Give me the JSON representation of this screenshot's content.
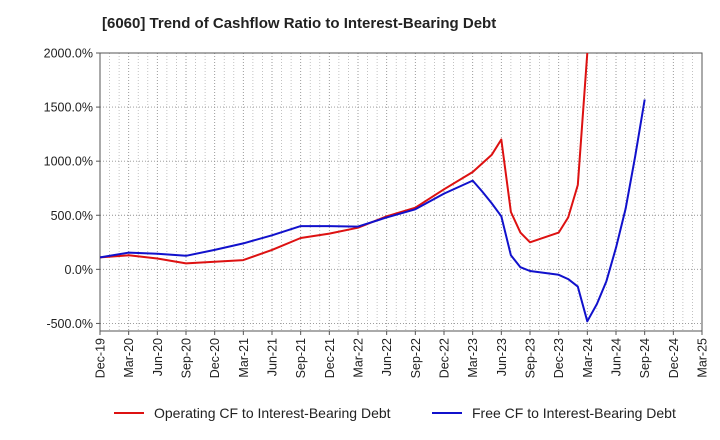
{
  "title": "[6060]  Trend of Cashflow Ratio to Interest-Bearing Debt",
  "chart_data": {
    "type": "line",
    "title": "[6060]  Trend of Cashflow Ratio to Interest-Bearing Debt",
    "xlabel": "",
    "ylabel": "",
    "x_tick_labels": [
      "Dec-19",
      "Mar-20",
      "Jun-20",
      "Sep-20",
      "Dec-20",
      "Mar-21",
      "Jun-21",
      "Sep-21",
      "Dec-21",
      "Mar-22",
      "Jun-22",
      "Sep-22",
      "Dec-22",
      "Mar-23",
      "Jun-23",
      "Sep-23",
      "Dec-23",
      "Mar-24",
      "Jun-24",
      "Sep-24",
      "Dec-24",
      "Mar-25"
    ],
    "y_tick_labels": [
      "2000.0%",
      "1500.0%",
      "1000.0%",
      "500.0%",
      "0.0%",
      "-500.0%"
    ],
    "y_tick_values": [
      2000,
      1500,
      1000,
      500,
      0,
      -500
    ],
    "ylim": [
      -570,
      2000
    ],
    "xlim": [
      0,
      21
    ],
    "grid": true,
    "legend_position": "bottom",
    "series": [
      {
        "name": "Operating CF to Interest-Bearing Debt",
        "color": "#dd1111",
        "points": [
          [
            "Dec-19",
            110
          ],
          [
            "Mar-20",
            130
          ],
          [
            "Jun-20",
            100
          ],
          [
            "Sep-20",
            55
          ],
          [
            "Dec-20",
            70
          ],
          [
            "Mar-21",
            85
          ],
          [
            "Jun-21",
            180
          ],
          [
            "Sep-21",
            290
          ],
          [
            "Dec-21",
            330
          ],
          [
            "Mar-22",
            385
          ],
          [
            "Jun-22",
            490
          ],
          [
            "Sep-22",
            570
          ],
          [
            "Dec-22",
            740
          ],
          [
            "Mar-23",
            900
          ],
          [
            "May-23",
            1060
          ],
          [
            "Jun-23",
            1200
          ],
          [
            "Jul-23",
            530
          ],
          [
            "Aug-23",
            340
          ],
          [
            "Sep-23",
            250
          ],
          [
            "Dec-23",
            340
          ],
          [
            "Jan-24",
            480
          ],
          [
            "Feb-24",
            780
          ],
          [
            "Mar-24",
            2000
          ]
        ]
      },
      {
        "name": "Free CF to Interest-Bearing Debt",
        "color": "#1111cc",
        "points": [
          [
            "Dec-19",
            110
          ],
          [
            "Mar-20",
            155
          ],
          [
            "Jun-20",
            145
          ],
          [
            "Sep-20",
            125
          ],
          [
            "Dec-20",
            180
          ],
          [
            "Mar-21",
            240
          ],
          [
            "Jun-21",
            315
          ],
          [
            "Sep-21",
            400
          ],
          [
            "Dec-21",
            400
          ],
          [
            "Mar-22",
            395
          ],
          [
            "Jun-22",
            480
          ],
          [
            "Sep-22",
            555
          ],
          [
            "Dec-22",
            700
          ],
          [
            "Mar-23",
            820
          ],
          [
            "Apr-23",
            720
          ],
          [
            "May-23",
            610
          ],
          [
            "Jun-23",
            490
          ],
          [
            "Jul-23",
            130
          ],
          [
            "Aug-23",
            20
          ],
          [
            "Sep-23",
            -15
          ],
          [
            "Dec-23",
            -50
          ],
          [
            "Jan-24",
            -90
          ],
          [
            "Feb-24",
            -160
          ],
          [
            "Mar-24",
            -480
          ],
          [
            "Apr-24",
            -320
          ],
          [
            "May-24",
            -110
          ],
          [
            "Jun-24",
            200
          ],
          [
            "Jul-24",
            560
          ],
          [
            "Aug-24",
            1040
          ],
          [
            "Sep-24",
            1570
          ]
        ]
      }
    ]
  }
}
